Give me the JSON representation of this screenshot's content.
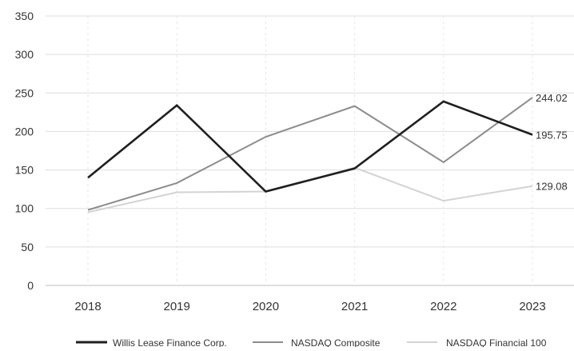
{
  "chart_data": {
    "type": "line",
    "x": [
      "2018",
      "2019",
      "2020",
      "2021",
      "2022",
      "2023"
    ],
    "ylim": [
      0,
      350
    ],
    "yticks": [
      0,
      50,
      100,
      150,
      200,
      250,
      300,
      350
    ],
    "grid": {
      "y": true,
      "x": "dashed"
    },
    "legend_position": "bottom",
    "series": [
      {
        "name": "Willis Lease Finance Corp.",
        "color": "#1f1f1f",
        "values": [
          140,
          234,
          122,
          152,
          239,
          195.75
        ],
        "end_label": "195.75"
      },
      {
        "name": "NASDAQ Composite",
        "color": "#8c8c8c",
        "values": [
          98,
          133,
          193,
          233,
          160,
          244.02
        ],
        "end_label": "244.02"
      },
      {
        "name": "NASDAQ Financial 100",
        "color": "#d3d3d3",
        "values": [
          95,
          121,
          122,
          153,
          110,
          129.08
        ],
        "end_label": "129.08"
      }
    ]
  }
}
